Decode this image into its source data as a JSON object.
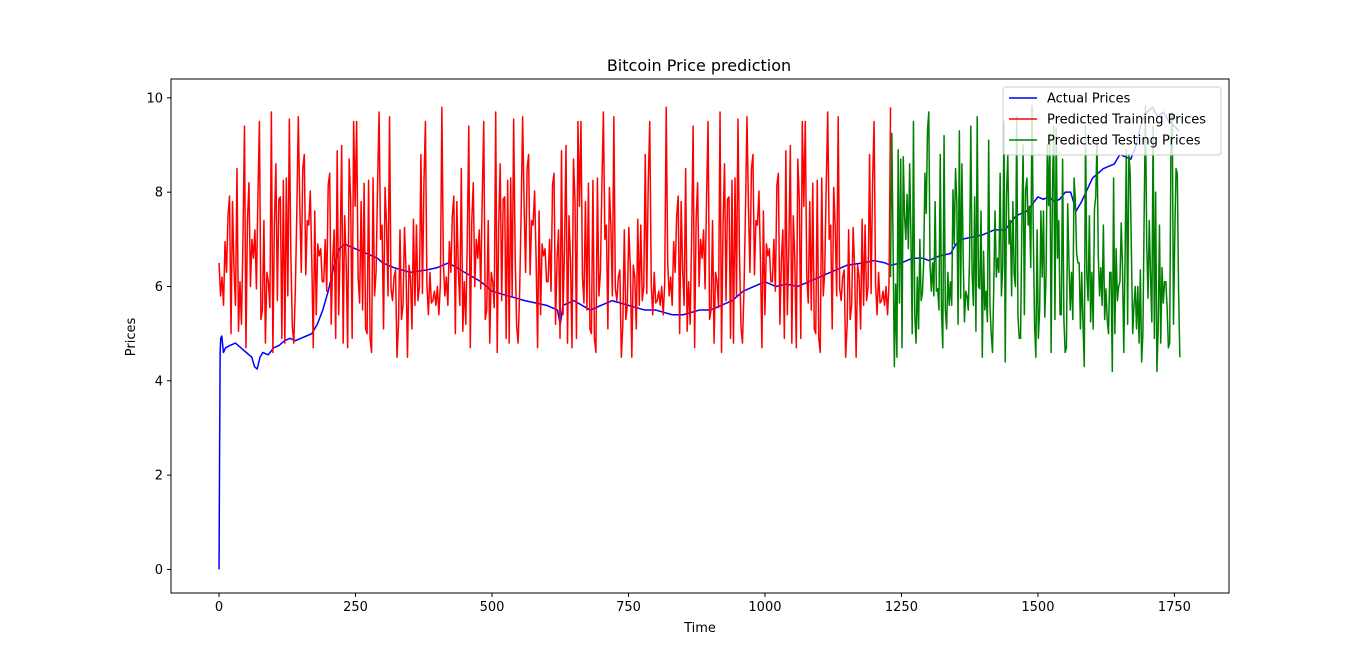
{
  "chart_data": {
    "type": "line",
    "title": "Bitcoin Price prediction",
    "xlabel": "Time",
    "ylabel": "Prices",
    "xlim": [
      -88,
      1850
    ],
    "ylim": [
      -0.5,
      10.4
    ],
    "xticks": [
      0,
      250,
      500,
      750,
      1000,
      1250,
      1500,
      1750
    ],
    "yticks": [
      0,
      2,
      4,
      6,
      8,
      10
    ],
    "grid": false,
    "legend_position": "top-right",
    "series": [
      {
        "name": "Actual Prices",
        "color": "#0000ff",
        "x": [
          0,
          1,
          2,
          3,
          5,
          8,
          12,
          20,
          30,
          40,
          50,
          60,
          65,
          70,
          75,
          80,
          90,
          100,
          110,
          120,
          130,
          140,
          150,
          160,
          170,
          180,
          190,
          200,
          210,
          220,
          230,
          250,
          270,
          290,
          300,
          320,
          350,
          380,
          400,
          420,
          450,
          480,
          500,
          530,
          560,
          600,
          620,
          625,
          630,
          650,
          680,
          700,
          720,
          750,
          780,
          800,
          830,
          850,
          880,
          900,
          920,
          940,
          960,
          980,
          1000,
          1020,
          1040,
          1060,
          1080,
          1100,
          1120,
          1150,
          1180,
          1200,
          1220,
          1230,
          1250,
          1270,
          1290,
          1300,
          1320,
          1340,
          1350,
          1360,
          1380,
          1400,
          1420,
          1440,
          1460,
          1480,
          1500,
          1510,
          1520,
          1530,
          1540,
          1550,
          1560,
          1570,
          1580,
          1600,
          1620,
          1640,
          1650,
          1660,
          1670,
          1680,
          1690,
          1700,
          1710,
          1720,
          1730,
          1740,
          1750,
          1758
        ],
        "y": [
          0,
          2.5,
          4.6,
          4.9,
          4.95,
          4.6,
          4.7,
          4.75,
          4.8,
          4.7,
          4.6,
          4.5,
          4.3,
          4.25,
          4.5,
          4.6,
          4.55,
          4.7,
          4.75,
          4.85,
          4.9,
          4.85,
          4.9,
          4.95,
          5.0,
          5.2,
          5.5,
          5.9,
          6.4,
          6.8,
          6.9,
          6.8,
          6.7,
          6.6,
          6.5,
          6.4,
          6.3,
          6.35,
          6.4,
          6.5,
          6.3,
          6.1,
          5.9,
          5.8,
          5.7,
          5.6,
          5.5,
          5.2,
          5.6,
          5.7,
          5.5,
          5.6,
          5.7,
          5.6,
          5.5,
          5.5,
          5.4,
          5.4,
          5.5,
          5.5,
          5.6,
          5.7,
          5.9,
          6.0,
          6.1,
          6.0,
          6.05,
          6.0,
          6.1,
          6.2,
          6.3,
          6.45,
          6.5,
          6.55,
          6.5,
          6.45,
          6.5,
          6.6,
          6.6,
          6.55,
          6.65,
          6.7,
          6.9,
          7.0,
          7.05,
          7.1,
          7.2,
          7.2,
          7.5,
          7.6,
          7.9,
          7.85,
          7.9,
          7.8,
          7.85,
          8.0,
          8.0,
          7.6,
          7.8,
          8.3,
          8.5,
          8.6,
          8.8,
          8.75,
          8.7,
          9.0,
          9.5,
          9.7,
          9.8,
          9.6,
          9.7,
          9.5,
          9.4,
          9.3
        ]
      },
      {
        "name": "Predicted Training Prices",
        "color": "#ff0000",
        "x_range": [
          0,
          1230
        ],
        "y_range": [
          4.4,
          9.83
        ],
        "peak_values": [
          9.7,
          9.55,
          9.6,
          9.5,
          9.83,
          9.7,
          9.6,
          9.68,
          9.5,
          9.7,
          9.75,
          9.6,
          9.4,
          9.55,
          9.5,
          9.8
        ],
        "values": [
          6.5,
          5.5,
          9.7,
          5.6,
          8.9,
          4.7,
          7.5,
          6.0,
          5.4,
          7.8,
          6.1,
          4.8,
          8.5,
          5.3,
          6.6,
          5.2,
          8.1,
          6.2,
          4.7,
          9.3,
          5.6,
          6.0,
          8.0,
          5.1,
          7.2,
          6.4,
          4.9,
          9.5,
          5.5,
          6.8,
          7.4,
          5.0,
          9.55,
          6.1,
          5.3,
          7.9,
          4.6,
          8.6,
          6.3,
          5.7,
          9.6,
          6.0,
          4.9,
          7.6,
          5.8,
          8.3,
          5.2,
          9.5,
          6.7,
          5.1,
          7.0,
          5.9,
          9.83,
          4.8,
          7.7,
          6.2,
          5.5,
          8.8,
          6.0,
          5.0,
          7.3,
          6.5,
          8.2,
          4.7,
          9.7,
          5.7,
          6.9,
          5.3,
          7.8,
          6.1,
          4.6,
          8.4,
          5.9,
          6.6,
          9.6,
          5.2,
          7.1,
          6.3,
          4.9,
          8.0,
          5.6,
          6.8,
          9.68,
          5.4,
          7.5,
          6.0,
          4.5,
          8.7,
          6.4,
          5.1,
          9.5,
          5.8,
          7.2,
          6.2,
          4.8,
          8.5,
          5.5,
          6.7,
          9.7,
          5.0,
          7.6,
          6.1,
          4.6,
          8.9,
          5.7,
          6.3,
          9.75,
          5.3,
          7.0,
          6.5,
          4.9,
          8.1,
          6.0,
          5.4,
          9.6,
          5.9,
          7.4,
          6.2,
          4.7,
          8.6,
          5.2,
          6.8,
          9.4,
          5.6,
          7.7,
          6.0,
          4.5,
          8.3,
          6.4,
          5.1,
          9.55,
          5.8,
          7.3,
          6.1,
          4.8,
          8.8,
          5.5,
          6.6,
          9.5,
          5.0,
          7.9,
          6.3,
          4.6,
          8.2,
          5.9,
          6.5,
          9.8,
          5.4,
          7.1,
          6.2
        ]
      },
      {
        "name": "Predicted Testing Prices",
        "color": "#008000",
        "x_range": [
          1230,
          1760
        ],
        "y_range": [
          4.2,
          9.83
        ],
        "values": [
          6.2,
          9.4,
          5.6,
          4.3,
          7.5,
          6.0,
          8.9,
          5.1,
          6.6,
          4.7,
          9.1,
          5.8,
          7.0,
          6.4,
          4.4,
          8.6,
          5.3,
          6.9,
          9.5,
          5.0,
          7.8,
          6.2,
          4.2,
          9.6,
          5.7,
          6.8,
          4.9,
          8.4,
          6.1,
          5.4,
          9.7,
          4.6,
          7.3,
          6.5,
          5.2,
          9.83,
          5.9,
          6.7,
          4.5,
          8.8,
          6.0,
          5.5,
          9.2,
          4.8,
          7.6,
          6.3,
          5.0,
          9.0,
          5.6,
          6.9,
          4.6,
          8.5,
          6.2,
          5.3,
          9.3,
          4.9,
          7.4,
          6.6,
          5.1,
          8.7,
          5.8,
          6.4,
          4.7,
          9.4,
          6.1,
          5.5,
          7.9,
          4.8,
          8.3,
          6.0,
          5.2,
          6.5,
          4.5,
          8.4,
          6.3,
          5.9
        ]
      }
    ]
  }
}
